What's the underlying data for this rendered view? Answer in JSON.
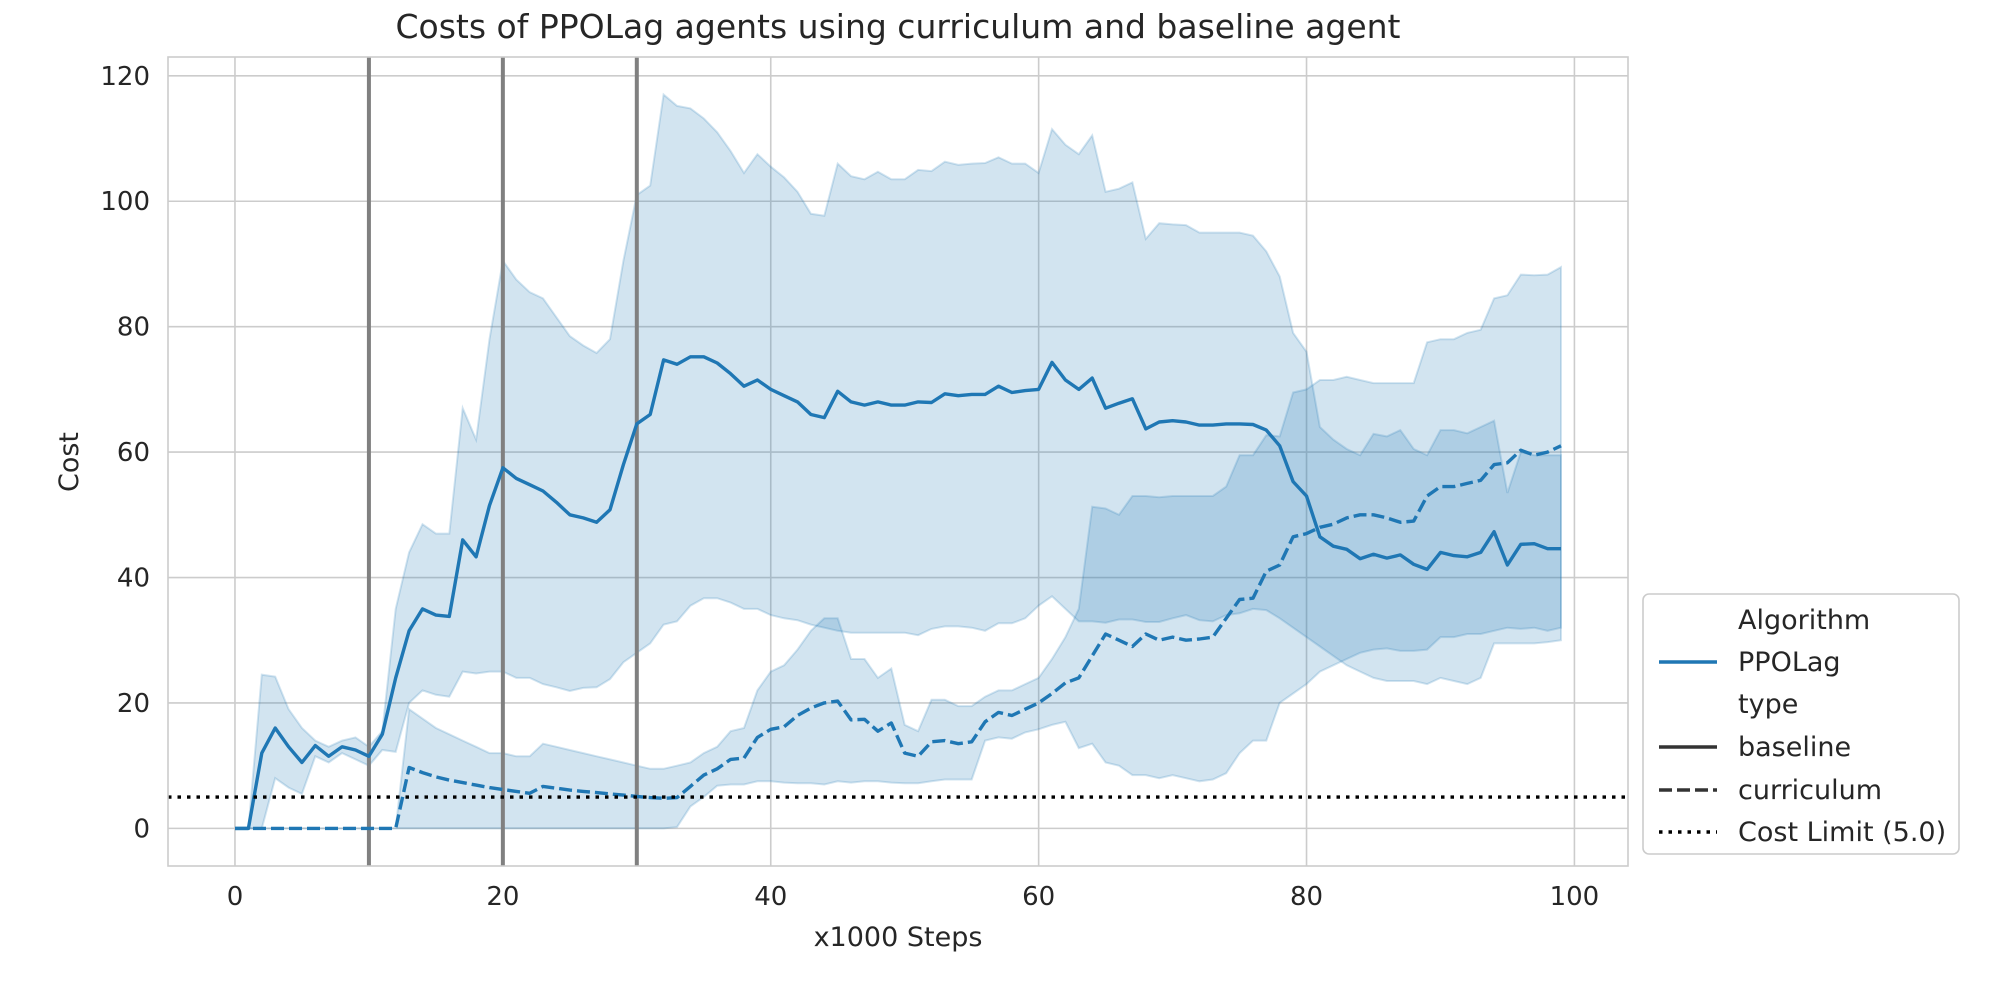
{
  "chart_data": {
    "type": "line",
    "title": "Costs of PPOLag agents using curriculum and baseline agent",
    "xlabel": "x1000 Steps",
    "ylabel": "Cost",
    "xlim": [
      -5,
      104
    ],
    "ylim": [
      -6,
      123
    ],
    "xticks": [
      0,
      20,
      40,
      60,
      80,
      100
    ],
    "yticks": [
      0,
      20,
      40,
      60,
      80,
      100,
      120
    ],
    "grid": true,
    "vlines": [
      10,
      20,
      30
    ],
    "cost_limit": 5.0,
    "series": [
      {
        "name": "baseline",
        "algorithm": "PPOLag",
        "style": "solid",
        "x": [
          0,
          1,
          2,
          3,
          4,
          5,
          6,
          7,
          8,
          9,
          10,
          11,
          12,
          13,
          14,
          15,
          16,
          17,
          18,
          19,
          20,
          21,
          22,
          23,
          24,
          25,
          26,
          27,
          28,
          29,
          30,
          31,
          32,
          33,
          34,
          35,
          36,
          37,
          38,
          39,
          40,
          41,
          42,
          43,
          44,
          45,
          46,
          47,
          48,
          49,
          50,
          51,
          52,
          53,
          54,
          55,
          56,
          57,
          58,
          59,
          60,
          61,
          62,
          63,
          64,
          65,
          66,
          67,
          68,
          69,
          70,
          71,
          72,
          73,
          74,
          75,
          76,
          77,
          78,
          79,
          80,
          81,
          82,
          83,
          84,
          85,
          86,
          87,
          88,
          89,
          90,
          91,
          92,
          93,
          94,
          95,
          96,
          97,
          98,
          99
        ],
        "y": [
          0,
          0,
          12,
          16,
          13,
          10.5,
          13.2,
          11.5,
          13,
          12.5,
          11.5,
          15,
          24,
          31.5,
          35,
          34,
          33.8,
          46,
          43.3,
          51.5,
          57.5,
          55.8,
          54.8,
          53.8,
          52,
          50,
          49.5,
          48.8,
          50.8,
          58,
          64.5,
          66,
          74.7,
          74,
          75.2,
          75.2,
          74.2,
          72.5,
          70.5,
          71.5,
          70,
          69,
          68,
          66,
          65.5,
          69.7,
          68,
          67.5,
          68,
          67.5,
          67.5,
          68,
          67.9,
          69.3,
          69,
          69.2,
          69.2,
          70.5,
          69.5,
          69.8,
          70,
          74.3,
          71.5,
          70,
          71.8,
          67,
          67.8,
          68.5,
          63.7,
          64.8,
          65,
          64.8,
          64.3,
          64.3,
          64.5,
          64.5,
          64.4,
          63.5,
          61,
          55.3,
          53,
          46.5,
          45,
          44.5,
          43,
          43.7,
          43.1,
          43.6,
          42.1,
          41.3,
          44,
          43.5,
          43.3,
          44,
          47.3,
          42,
          45.3,
          45.4,
          44.6,
          44.6
        ],
        "lower": [
          0,
          0,
          0,
          8,
          6.5,
          5.5,
          11.5,
          10.5,
          12,
          11,
          10,
          12.5,
          12.2,
          20,
          22,
          21.3,
          21,
          25,
          24.7,
          25,
          25,
          24,
          24,
          23,
          22.5,
          21.9,
          22.4,
          22.5,
          23.8,
          26.5,
          28,
          29.5,
          32.5,
          33,
          35.5,
          36.7,
          36.7,
          36,
          35,
          35,
          34,
          33.5,
          33.2,
          32.5,
          32,
          31.5,
          31.2,
          31.2,
          31.2,
          31.2,
          31.2,
          30.8,
          31.8,
          32.2,
          32.2,
          32,
          31.5,
          32.7,
          32.7,
          33.5,
          35.5,
          37,
          35,
          33,
          33,
          32.8,
          33.3,
          33.3,
          32.9,
          32.9,
          33.5,
          34,
          33.2,
          33,
          34,
          34.3,
          35,
          34.8,
          33.5,
          32,
          30.5,
          29,
          27.5,
          26,
          25,
          24,
          23.5,
          23.5,
          23.5,
          23,
          24,
          23.5,
          23,
          24,
          29.5,
          29.5,
          29.5,
          29.5,
          29.7,
          30
        ],
        "upper": [
          0,
          0,
          24.5,
          24.2,
          19,
          16,
          14,
          13,
          14,
          14.5,
          13,
          15.5,
          35,
          44,
          48.5,
          47,
          47,
          67,
          62,
          78,
          90.5,
          87.5,
          85.5,
          84.5,
          81.5,
          78.5,
          77,
          75.8,
          78,
          90.5,
          101,
          102.5,
          117,
          115.2,
          114.8,
          113.2,
          111,
          108,
          104.5,
          107.5,
          105.5,
          103.8,
          101.5,
          98,
          97.7,
          106,
          104,
          103.5,
          104.7,
          103.5,
          103.5,
          105,
          104.8,
          106.3,
          105.8,
          106,
          106.1,
          107,
          106,
          106,
          104.5,
          111.5,
          109,
          107.5,
          110.5,
          101.5,
          102,
          103,
          94,
          96.5,
          96.3,
          96.2,
          95,
          95,
          95,
          95,
          94.5,
          92,
          88,
          79,
          76,
          64,
          62,
          60.5,
          59.5,
          62.9,
          62.5,
          63.5,
          60.5,
          59.5,
          63.5,
          63.5,
          63,
          64,
          65,
          53.5,
          60,
          59.5,
          59.5,
          59.5
        ]
      },
      {
        "name": "curriculum",
        "algorithm": "PPOLag",
        "style": "dashed",
        "x": [
          0,
          1,
          2,
          3,
          4,
          5,
          6,
          7,
          8,
          9,
          10,
          11,
          12,
          13,
          14,
          15,
          16,
          17,
          18,
          19,
          20,
          21,
          22,
          23,
          24,
          25,
          26,
          27,
          28,
          29,
          30,
          31,
          32,
          33,
          34,
          35,
          36,
          37,
          38,
          39,
          40,
          41,
          42,
          43,
          44,
          45,
          46,
          47,
          48,
          49,
          50,
          51,
          52,
          53,
          54,
          55,
          56,
          57,
          58,
          59,
          60,
          61,
          62,
          63,
          64,
          65,
          66,
          67,
          68,
          69,
          70,
          71,
          72,
          73,
          74,
          75,
          76,
          77,
          78,
          79,
          80,
          81,
          82,
          83,
          84,
          85,
          86,
          87,
          88,
          89,
          90,
          91,
          92,
          93,
          94,
          95,
          96,
          97,
          98,
          99
        ],
        "y": [
          0,
          0,
          0,
          0,
          0,
          0,
          0,
          0,
          0,
          0,
          0,
          0,
          0,
          9.7,
          8.9,
          8.2,
          7.7,
          7.3,
          6.9,
          6.5,
          6.2,
          5.9,
          5.6,
          6.7,
          6.4,
          6.1,
          5.9,
          5.7,
          5.5,
          5.3,
          5.1,
          4.9,
          4.8,
          4.9,
          6.7,
          8.5,
          9.5,
          11,
          11.2,
          14.5,
          15.8,
          16.2,
          18,
          19.2,
          20,
          20.3,
          17.3,
          17.4,
          15.5,
          16.8,
          12,
          11.5,
          13.8,
          14,
          13.5,
          13.8,
          17,
          18.5,
          18,
          19,
          20,
          21.5,
          23.2,
          24,
          27.5,
          31,
          30,
          29,
          31,
          30,
          30.5,
          30,
          30.2,
          30.5,
          33.5,
          36.5,
          36.7,
          41,
          42,
          46.5,
          47,
          48,
          48.5,
          49.5,
          50,
          50,
          49.5,
          48.8,
          49,
          53,
          54.5,
          54.5,
          55,
          55.5,
          58,
          58.3,
          60.3,
          59.5,
          60,
          61
        ],
        "lower": [
          0,
          0,
          0,
          0,
          0,
          0,
          0,
          0,
          0,
          0,
          0,
          0,
          0,
          0,
          0,
          0,
          0,
          0,
          0,
          0,
          0,
          0,
          0,
          0,
          0,
          0,
          0,
          0,
          0,
          0,
          0,
          0,
          0,
          0.2,
          3.5,
          5,
          6.8,
          7,
          7,
          7.5,
          7.5,
          7.3,
          7.2,
          7.2,
          7,
          7.5,
          7.3,
          7.5,
          7.5,
          7.3,
          7.2,
          7.2,
          7.5,
          7.8,
          7.8,
          7.8,
          14,
          14.5,
          14.3,
          15.3,
          15.8,
          16.5,
          17,
          12.8,
          13.5,
          10.5,
          10,
          8.5,
          8.5,
          8,
          8.5,
          8,
          7.5,
          7.8,
          8.8,
          12,
          14,
          14,
          20,
          21.5,
          23,
          25,
          26,
          27,
          28,
          28.5,
          28.7,
          28.3,
          28.3,
          28.5,
          30.5,
          30.5,
          31,
          31,
          31.5,
          32,
          31.8,
          32,
          31.5,
          32
        ],
        "upper": [
          0,
          0,
          0,
          0,
          0,
          0,
          0,
          0,
          0,
          0,
          0,
          0,
          0,
          19,
          17.5,
          16,
          15,
          14,
          13,
          12,
          12,
          11.5,
          11.5,
          13.5,
          13,
          12.5,
          12,
          11.5,
          11,
          10.5,
          10,
          9.5,
          9.5,
          10,
          10.5,
          12,
          13,
          15.5,
          16,
          22,
          25,
          26,
          28.5,
          31.5,
          33.5,
          33.5,
          27,
          27,
          24,
          25.5,
          16.5,
          15.5,
          20.5,
          20.5,
          19.5,
          19.5,
          21,
          22,
          22,
          23,
          24,
          27,
          30.5,
          35,
          51.3,
          51,
          50,
          53,
          53,
          52.8,
          53,
          53,
          53,
          53,
          54.5,
          59.5,
          59.5,
          62.7,
          62.5,
          69.5,
          70,
          71.5,
          71.5,
          72,
          71.5,
          71,
          71,
          71,
          71,
          77.5,
          78,
          78,
          79,
          79.5,
          84.5,
          85,
          88.3,
          88.2,
          88.3,
          89.5
        ]
      }
    ],
    "legend": {
      "position": "lower-right-outside",
      "entries": [
        {
          "label": "Algorithm",
          "kind": "header"
        },
        {
          "label": "PPOLag",
          "kind": "line",
          "style": "solid",
          "color": "#1f77b4"
        },
        {
          "label": "type",
          "kind": "header"
        },
        {
          "label": "baseline",
          "kind": "line",
          "style": "solid",
          "color": "#333333"
        },
        {
          "label": "curriculum",
          "kind": "line",
          "style": "dashed",
          "color": "#333333"
        },
        {
          "label": "Cost Limit (5.0)",
          "kind": "line",
          "style": "dotted",
          "color": "#000000"
        }
      ]
    },
    "colors": {
      "line": "#1f77b4",
      "band": "#1f77b4",
      "vline": "#808080",
      "grid": "#cccccc",
      "limit": "#000000"
    }
  }
}
